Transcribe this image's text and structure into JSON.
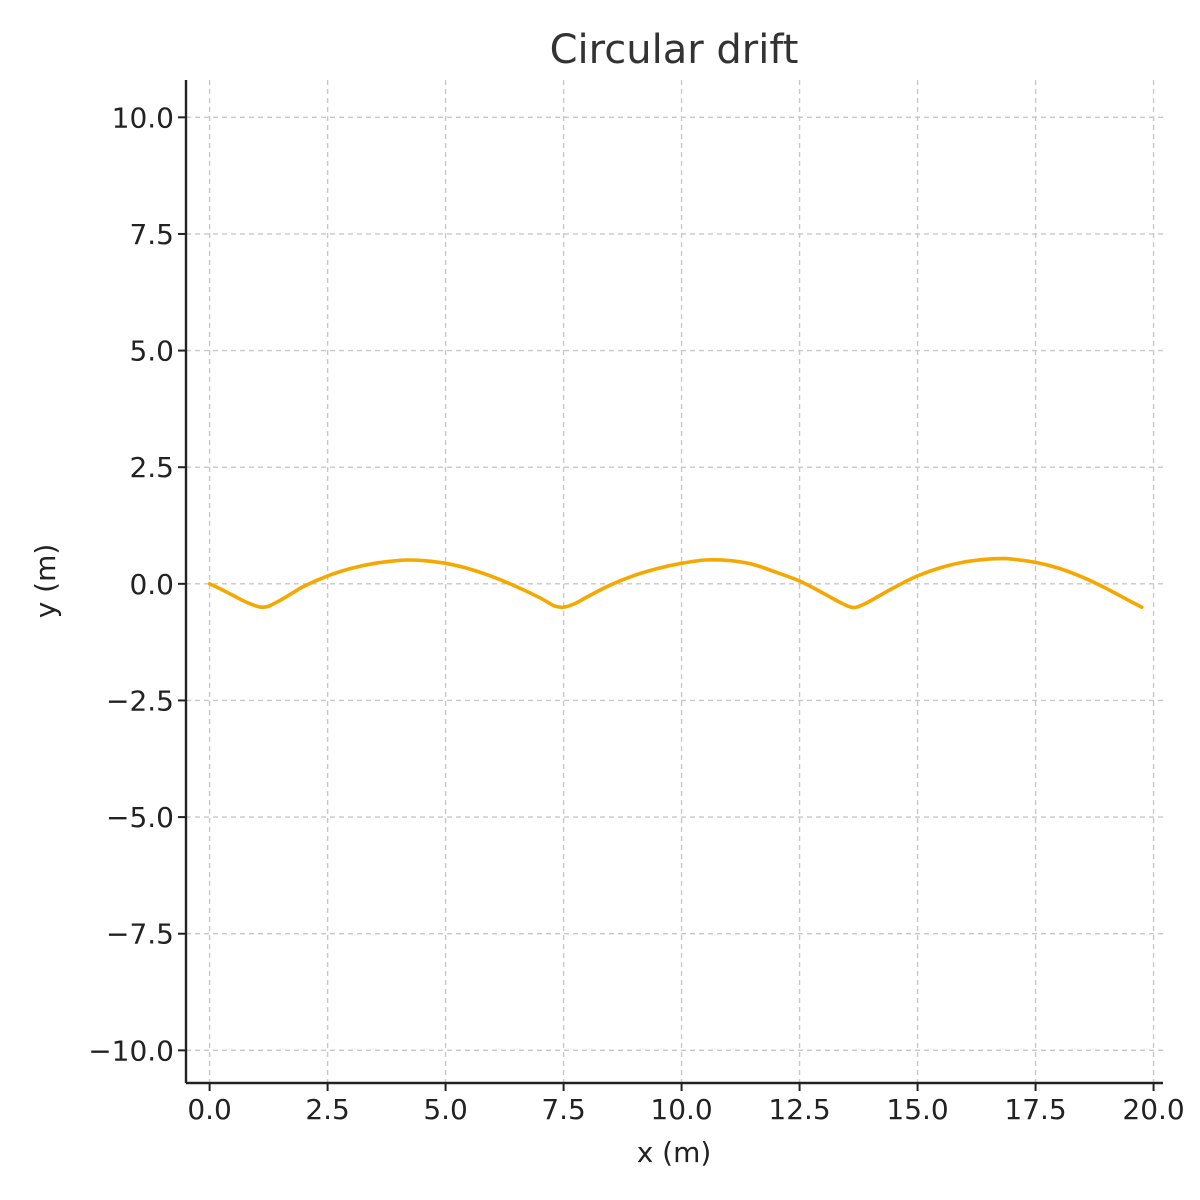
{
  "chart_data": {
    "type": "line",
    "title": "Circular drift",
    "xlabel": "x (m)",
    "ylabel": "y (m)",
    "xlim": [
      -0.5,
      20.2
    ],
    "ylim": [
      -10.7,
      10.8
    ],
    "xticks": [
      0.0,
      2.5,
      5.0,
      7.5,
      10.0,
      12.5,
      15.0,
      17.5,
      20.0
    ],
    "yticks": [
      -10.0,
      -7.5,
      -5.0,
      -2.5,
      0.0,
      2.5,
      5.0,
      7.5,
      10.0
    ],
    "xtick_labels": [
      "0.0",
      "2.5",
      "5.0",
      "7.5",
      "10.0",
      "12.5",
      "15.0",
      "17.5",
      "20.0"
    ],
    "ytick_labels": [
      "−10.0",
      "−7.5",
      "−5.0",
      "−2.5",
      "0.0",
      "2.5",
      "5.0",
      "7.5",
      "10.0"
    ],
    "grid": true,
    "series": [
      {
        "color": "#f5a800",
        "x": [
          0.0,
          0.25,
          0.5,
          0.75,
          1.0,
          1.1,
          1.25,
          1.5,
          1.75,
          2.0,
          2.5,
          3.0,
          3.5,
          4.0,
          4.2,
          4.5,
          5.0,
          5.5,
          6.0,
          6.5,
          7.0,
          7.3,
          7.5,
          7.75,
          8.0,
          8.5,
          9.0,
          9.5,
          10.0,
          10.5,
          11.0,
          11.5,
          12.0,
          12.5,
          13.0,
          13.4,
          13.65,
          13.9,
          14.2,
          14.5,
          15.0,
          15.5,
          16.0,
          16.5,
          16.8,
          17.0,
          17.5,
          18.0,
          18.5,
          19.0,
          19.5,
          19.75
        ],
        "y": [
          0.0,
          -0.12,
          -0.25,
          -0.38,
          -0.48,
          -0.5,
          -0.48,
          -0.35,
          -0.2,
          -0.05,
          0.17,
          0.33,
          0.44,
          0.5,
          0.51,
          0.5,
          0.44,
          0.32,
          0.15,
          -0.06,
          -0.3,
          -0.47,
          -0.5,
          -0.42,
          -0.28,
          -0.02,
          0.18,
          0.33,
          0.44,
          0.51,
          0.5,
          0.42,
          0.25,
          0.06,
          -0.2,
          -0.42,
          -0.51,
          -0.42,
          -0.25,
          -0.08,
          0.17,
          0.35,
          0.47,
          0.53,
          0.54,
          0.53,
          0.46,
          0.33,
          0.14,
          -0.1,
          -0.37,
          -0.5
        ]
      }
    ]
  }
}
